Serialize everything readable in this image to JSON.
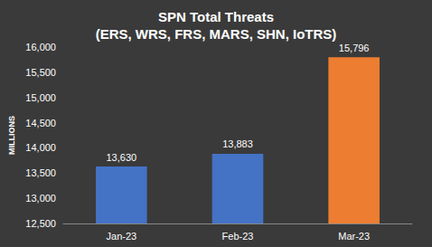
{
  "chart_data": {
    "type": "bar",
    "title": "SPN Total Threats\n(ERS, WRS, FRS, MARS, SHN, IoTRS)",
    "ylabel": "MILLIONS",
    "categories": [
      "Jan-23",
      "Feb-23",
      "Mar-23"
    ],
    "values": [
      13630,
      13883,
      15796
    ],
    "value_labels": [
      "13,630",
      "13,883",
      "15,796"
    ],
    "colors": [
      "#4472c4",
      "#4472c4",
      "#ed7d31"
    ],
    "ylim": [
      12500,
      16000
    ],
    "yticks": [
      {
        "value": 12500,
        "label": "12,500"
      },
      {
        "value": 13000,
        "label": "13,000"
      },
      {
        "value": 13500,
        "label": "13,500"
      },
      {
        "value": 14000,
        "label": "14,000"
      },
      {
        "value": 14500,
        "label": "14,500"
      },
      {
        "value": 15000,
        "label": "15,000"
      },
      {
        "value": 15500,
        "label": "15,500"
      },
      {
        "value": 16000,
        "label": "16,000"
      }
    ],
    "grid": false,
    "data_labels": true
  }
}
